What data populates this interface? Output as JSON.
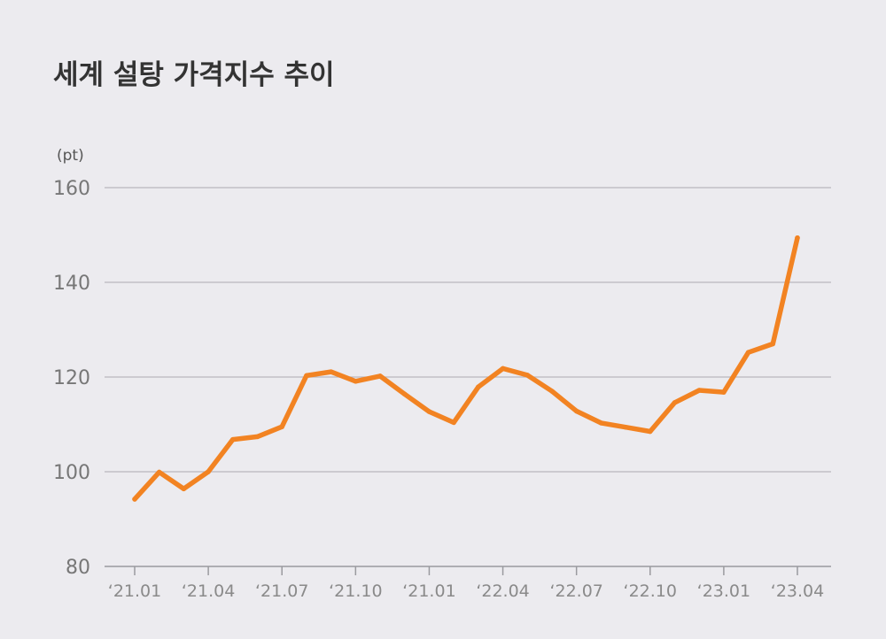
{
  "chart_data": {
    "type": "line",
    "title": "세계 설탕 가격지수 추이",
    "unit": "(pt)",
    "ylim": [
      80,
      160
    ],
    "yticks": [
      "160",
      "140",
      "120",
      "100",
      "80"
    ],
    "xticks": [
      "‘21.01",
      "‘21.04",
      "‘21.07",
      "‘21.10",
      "‘21.01",
      "‘22.04",
      "‘22.07",
      "‘22.10",
      "‘23.01",
      "‘23.04"
    ],
    "grid": true,
    "colors": {
      "line": "#f28322",
      "grid": "#b8b6bd",
      "axis": "#9a9a9f"
    },
    "series": [
      {
        "x": [
          "2021-01",
          "2021-02",
          "2021-03",
          "2021-04",
          "2021-05",
          "2021-06",
          "2021-07",
          "2021-08",
          "2021-09",
          "2021-10",
          "2021-11",
          "2021-12",
          "2022-01",
          "2022-02",
          "2022-03",
          "2022-04",
          "2022-05",
          "2022-06",
          "2022-07",
          "2022-08",
          "2022-09",
          "2022-10",
          "2022-11",
          "2022-12",
          "2023-01",
          "2023-02",
          "2023-03",
          "2023-04"
        ],
        "values": [
          94.2,
          99.9,
          96.4,
          100.0,
          106.8,
          107.4,
          109.5,
          120.3,
          121.1,
          119.1,
          120.2,
          116.4,
          112.7,
          110.4,
          117.9,
          121.8,
          120.4,
          117.0,
          112.8,
          110.3,
          109.4,
          108.5,
          114.6,
          117.2,
          116.8,
          125.2,
          127.0,
          149.4
        ]
      }
    ]
  }
}
